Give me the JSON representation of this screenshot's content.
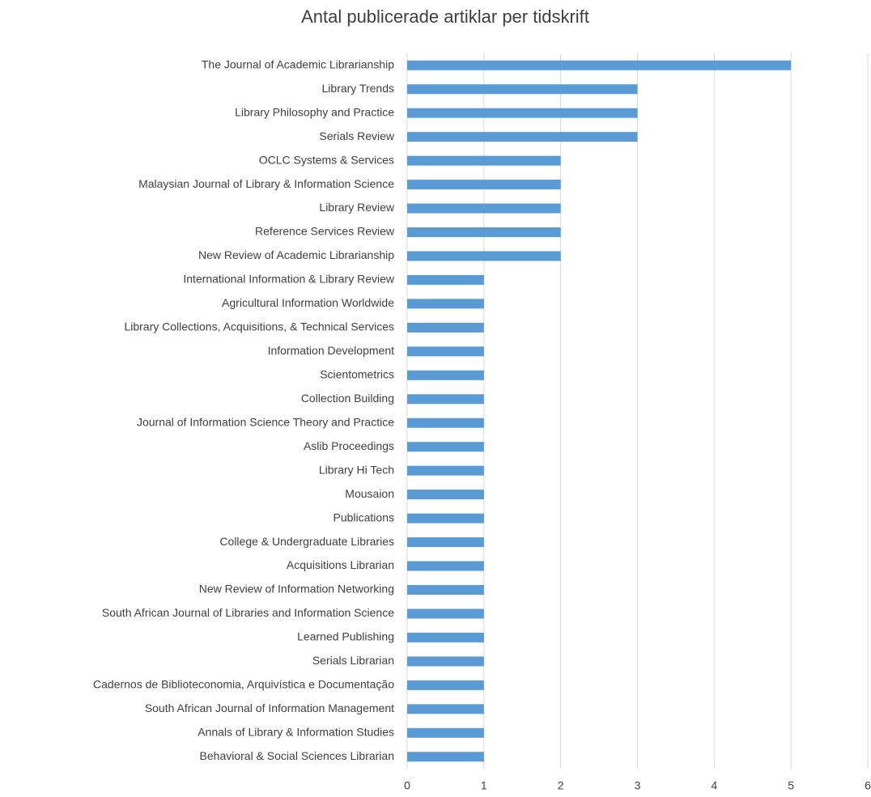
{
  "chart_data": {
    "type": "bar",
    "orientation": "horizontal",
    "title": "Antal publicerade artiklar per tidskrift",
    "categories": [
      "The Journal of Academic Librarianship",
      "Library Trends",
      "Library Philosophy and Practice",
      "Serials Review",
      "OCLC Systems & Services",
      "Malaysian Journal of Library & Information Science",
      "Library Review",
      "Reference Services Review",
      "New Review of Academic Librarianship",
      "International Information & Library Review",
      "Agricultural Information Worldwide",
      "Library Collections, Acquisitions, & Technical Services",
      "Information Development",
      "Scientometrics",
      "Collection Building",
      "Journal of Information Science Theory and Practice",
      "Aslib Proceedings",
      "Library Hi Tech",
      "Mousaion",
      "Publications",
      "College & Undergraduate Libraries",
      "Acquisitions Librarian",
      "New Review of Information Networking",
      "South African Journal of Libraries and Information Science",
      "Learned Publishing",
      "Serials Librarian",
      "Cadernos de Biblioteconomia, Arquivística e Documentação",
      "South African Journal of Information Management",
      "Annals of Library & Information Studies",
      "Behavioral & Social Sciences Librarian"
    ],
    "values": [
      5,
      3,
      3,
      3,
      2,
      2,
      2,
      2,
      2,
      1,
      1,
      1,
      1,
      1,
      1,
      1,
      1,
      1,
      1,
      1,
      1,
      1,
      1,
      1,
      1,
      1,
      1,
      1,
      1,
      1
    ],
    "color": "#5b9bd5",
    "xlim": [
      0,
      6
    ],
    "xticks": [
      0,
      1,
      2,
      3,
      4,
      5,
      6
    ],
    "grid": true
  }
}
